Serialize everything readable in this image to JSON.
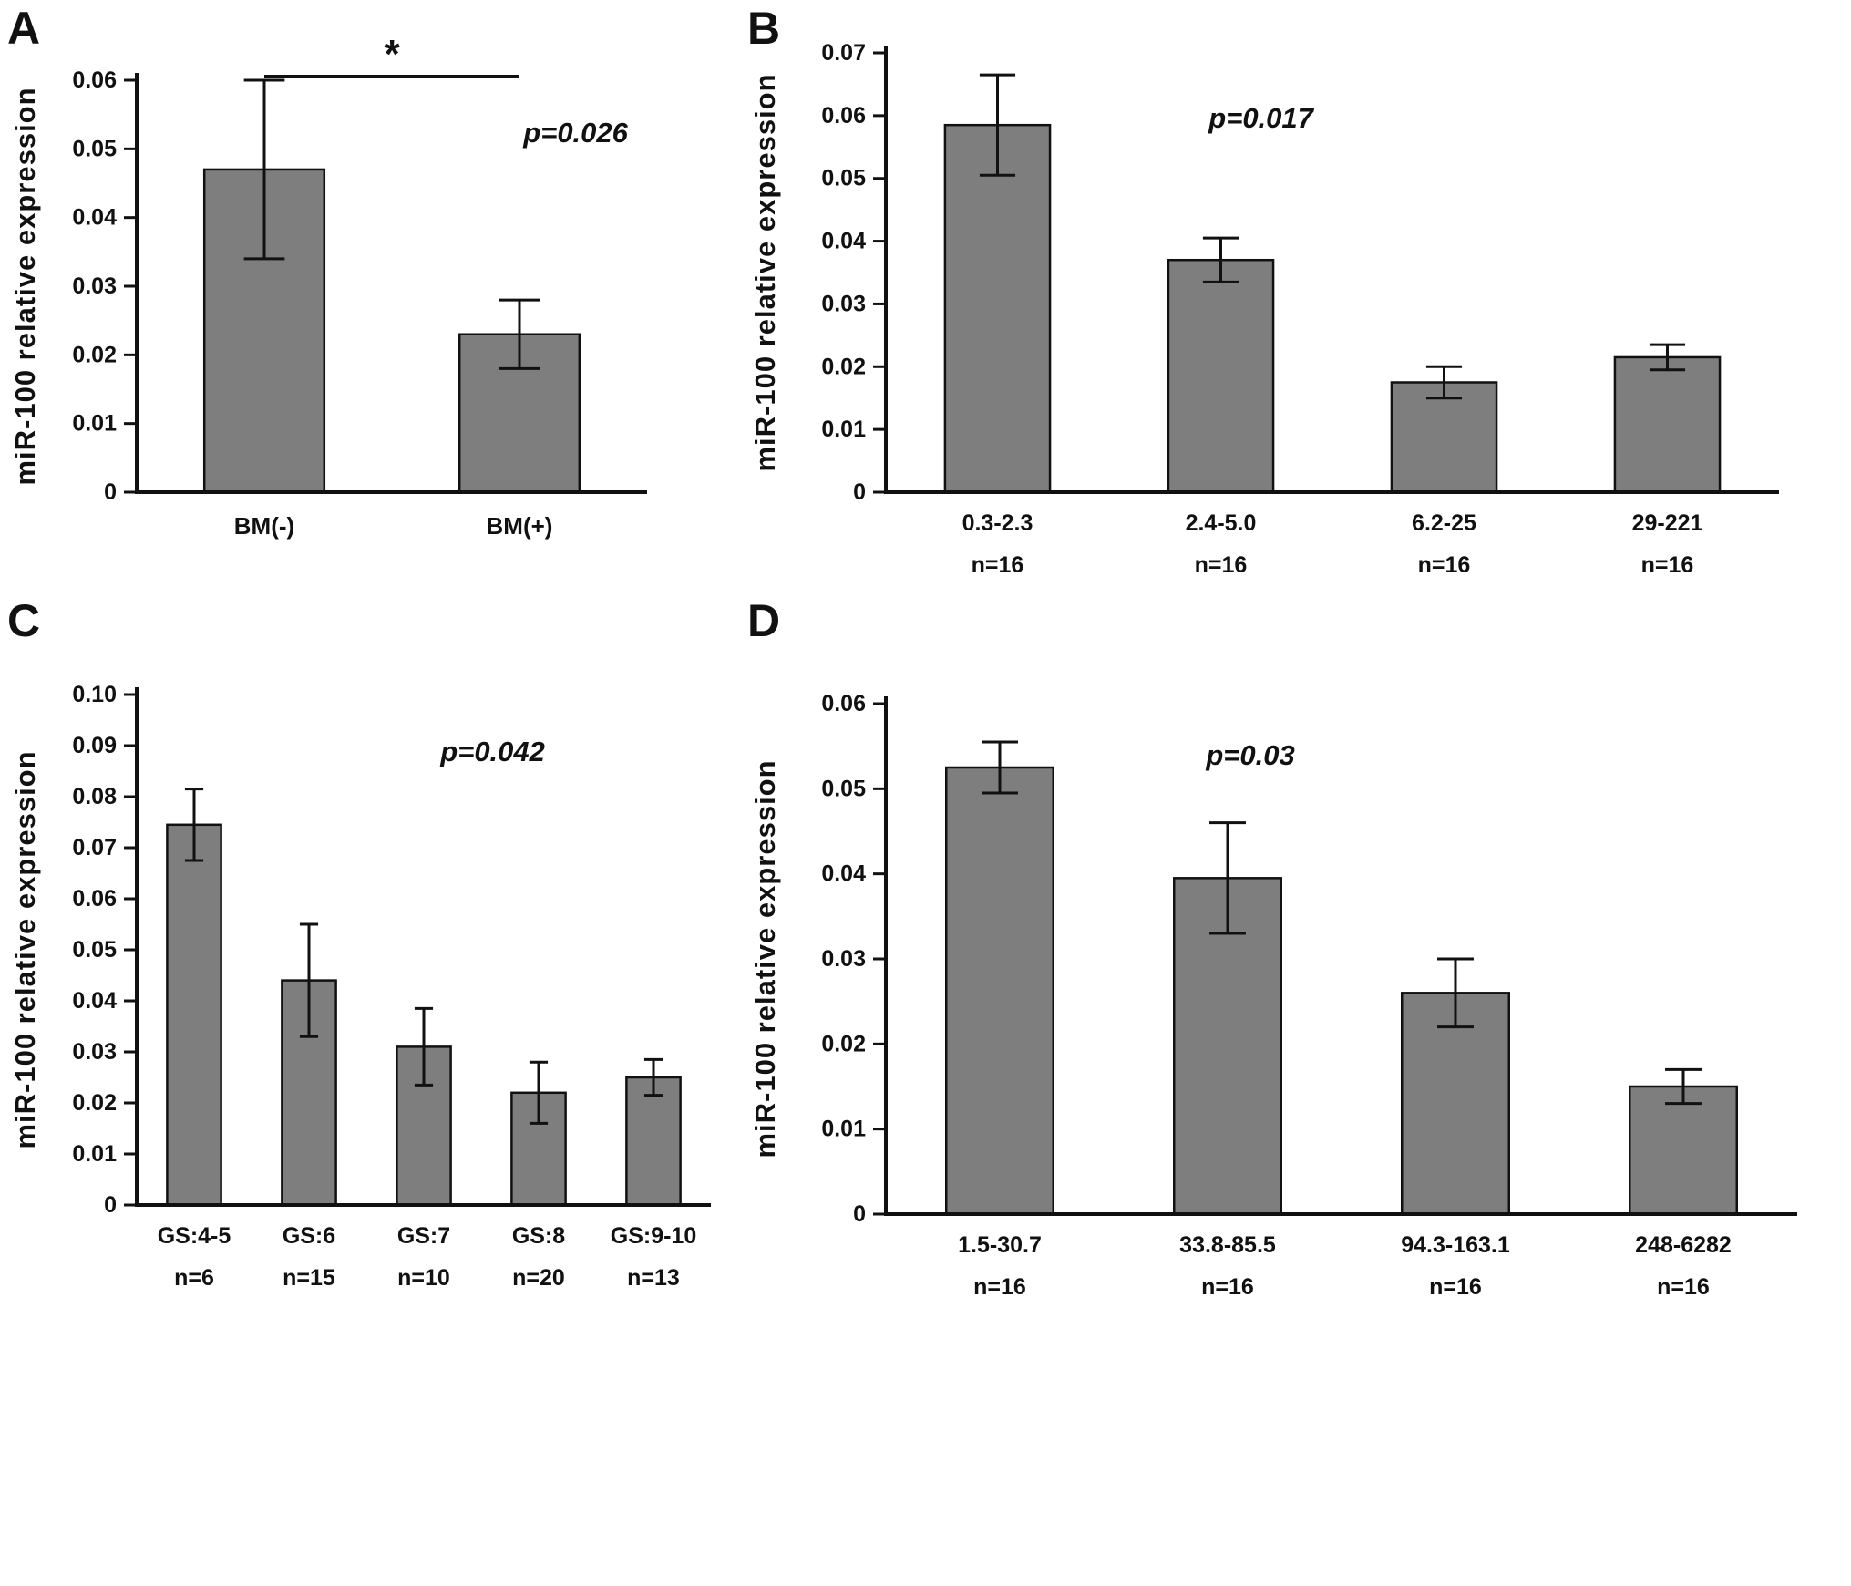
{
  "figure": {
    "background": "#ffffff",
    "bar_fill": "#7e7e7e",
    "bar_stroke": "#111111",
    "axis_color": "#111111",
    "text_color": "#111111"
  },
  "chart_data": [
    {
      "type": "bar",
      "panel": "A",
      "title": "",
      "ylabel": "miR-100 relative expression",
      "xlabel": "",
      "ylim": [
        0,
        0.06
      ],
      "ytick_step": 0.01,
      "grid": "off",
      "p_label": "p=0.026",
      "significance": {
        "label": "*",
        "between": [
          0,
          1
        ]
      },
      "categories": [
        "BM(-)",
        "BM(+)"
      ],
      "counts": [],
      "values": [
        0.047,
        0.023
      ],
      "errors": [
        0.013,
        0.005
      ],
      "p_pos": [
        0.86,
        0.15
      ]
    },
    {
      "type": "bar",
      "panel": "B",
      "title": "",
      "ylabel": "miR-100 relative expression",
      "xlabel": "",
      "ylim": [
        0,
        0.07
      ],
      "ytick_step": 0.01,
      "grid": "off",
      "p_label": "p=0.017",
      "categories": [
        "0.3-2.3",
        "2.4-5.0",
        "6.2-25",
        "29-221"
      ],
      "counts": [
        "n=16",
        "n=16",
        "n=16",
        "n=16"
      ],
      "values": [
        0.0585,
        0.037,
        0.0175,
        0.0215
      ],
      "errors": [
        0.008,
        0.0035,
        0.0025,
        0.002
      ],
      "p_pos": [
        0.42,
        0.17
      ]
    },
    {
      "type": "bar",
      "panel": "C",
      "title": "",
      "ylabel": "miR-100 relative expression",
      "xlabel": "",
      "ylim": [
        0,
        0.1
      ],
      "ytick_step": 0.01,
      "grid": "off",
      "p_label": "p=0.042",
      "categories": [
        "GS:4-5",
        "GS:6",
        "GS:7",
        "GS:8",
        "GS:9-10"
      ],
      "counts": [
        "n=6",
        "n=15",
        "n=10",
        "n=20",
        "n=13"
      ],
      "values": [
        0.0745,
        0.044,
        0.031,
        0.022,
        0.025
      ],
      "errors": [
        0.007,
        0.011,
        0.0075,
        0.006,
        0.0035
      ],
      "p_pos": [
        0.62,
        0.13
      ]
    },
    {
      "type": "bar",
      "panel": "D",
      "title": "",
      "ylabel": "miR-100 relative expression",
      "xlabel": "",
      "ylim": [
        0,
        0.06
      ],
      "ytick_step": 0.01,
      "grid": "off",
      "p_label": "p=0.03",
      "categories": [
        "1.5-30.7",
        "33.8-85.5",
        "94.3-163.1",
        "248-6282"
      ],
      "counts": [
        "n=16",
        "n=16",
        "n=16",
        "n=16"
      ],
      "values": [
        0.0525,
        0.0395,
        0.026,
        0.015
      ],
      "errors": [
        0.003,
        0.0065,
        0.004,
        0.002
      ],
      "p_pos": [
        0.4,
        0.12
      ]
    }
  ]
}
